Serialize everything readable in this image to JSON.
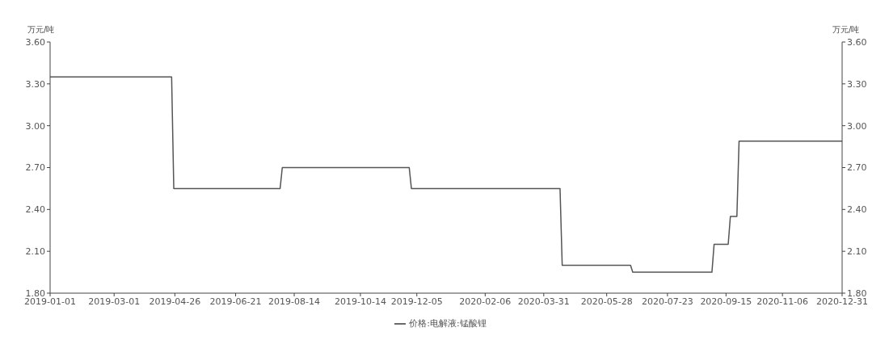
{
  "chart_data": {
    "type": "line",
    "ylabel": "万元/吨",
    "y2label": "万元/吨",
    "x": [
      "2019-01-01",
      "2019-04-23",
      "2019-04-25",
      "2019-08-01",
      "2019-08-03",
      "2019-11-28",
      "2019-11-30",
      "2020-04-15",
      "2020-04-17",
      "2020-06-19",
      "2020-06-21",
      "2020-09-02",
      "2020-09-04",
      "2020-09-17",
      "2020-09-19",
      "2020-09-25",
      "2020-09-27",
      "2020-12-31"
    ],
    "series": [
      {
        "name": "价格:电解液:锰酸锂",
        "color": "#555555",
        "values": [
          3.35,
          3.35,
          2.55,
          2.55,
          2.7,
          2.7,
          2.55,
          2.55,
          2.0,
          2.0,
          1.95,
          1.95,
          2.15,
          2.15,
          2.35,
          2.35,
          2.89,
          2.89
        ]
      }
    ],
    "xlim": [
      "2019-01-01",
      "2020-12-31"
    ],
    "xticks": [
      "2019-01-01",
      "2019-03-01",
      "2019-04-26",
      "2019-06-21",
      "2019-08-14",
      "2019-10-14",
      "2019-12-05",
      "2020-02-06",
      "2020-03-31",
      "2020-05-28",
      "2020-07-23",
      "2020-09-15",
      "2020-11-06",
      "2020-12-31"
    ],
    "ylim": [
      1.8,
      3.6
    ],
    "yticks": [
      {
        "value": 1.8,
        "label": "1.80"
      },
      {
        "value": 2.1,
        "label": "2.10"
      },
      {
        "value": 2.4,
        "label": "2.40"
      },
      {
        "value": 2.7,
        "label": "2.70"
      },
      {
        "value": 3.0,
        "label": "3.00"
      },
      {
        "value": 3.3,
        "label": "3.30"
      },
      {
        "value": 3.6,
        "label": "3.60"
      }
    ],
    "y2lim": [
      1.8,
      3.6
    ],
    "y2ticks": [
      {
        "value": 1.8,
        "label": "1.80"
      },
      {
        "value": 2.1,
        "label": "2.10"
      },
      {
        "value": 2.4,
        "label": "2.40"
      },
      {
        "value": 2.7,
        "label": "2.70"
      },
      {
        "value": 3.0,
        "label": "3.00"
      },
      {
        "value": 3.3,
        "label": "3.30"
      },
      {
        "value": 3.6,
        "label": "3.60"
      }
    ],
    "legend": "bottom",
    "grid": false,
    "marker": "none",
    "line_style": "solid"
  }
}
